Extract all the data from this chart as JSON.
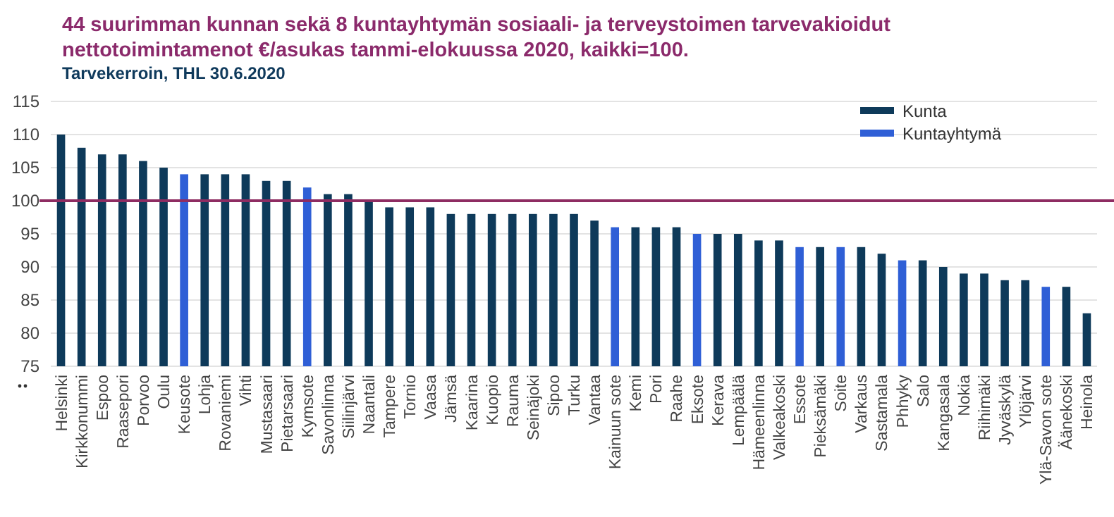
{
  "chart_data": {
    "type": "bar",
    "title": "44 suurimman kunnan sekä 8 kuntayhtymän sosiaali- ja terveystoimen tarvevakioidut nettotoimintamenot €/asukas tammi-elokuussa 2020, kaikki=100.",
    "subtitle": "Tarvekerroin, THL 30.6.2020",
    "categories": [
      "Helsinki",
      "Kirkkonummi",
      "Espoo",
      "Raasepori",
      "Porvoo",
      "Oulu",
      "Keusote",
      "Lohja",
      "Rovaniemi",
      "Vihti",
      "Mustasaari",
      "Pietarsaari",
      "Kymsote",
      "Savonlinna",
      "Siilinjärvi",
      "Naantali",
      "Tampere",
      "Tornio",
      "Vaasa",
      "Jämsä",
      "Kaarina",
      "Kuopio",
      "Rauma",
      "Seinäjoki",
      "Sipoo",
      "Turku",
      "Vantaa",
      "Kainuun sote",
      "Kemi",
      "Pori",
      "Raahe",
      "Eksote",
      "Kerava",
      "Lempäälä",
      "Hämeenlinna",
      "Valkeakoski",
      "Essote",
      "Pieksämäki",
      "Soite",
      "Varkaus",
      "Sastamala",
      "Phhyky",
      "Salo",
      "Kangasala",
      "Nokia",
      "Riihimäki",
      "Jyväskylä",
      "Ylöjärvi",
      "Ylä-Savon sote",
      "Äänekoski",
      "Heinola"
    ],
    "series": [
      {
        "name": "Kunta",
        "color": "#0e3a5a",
        "values": [
          110,
          108,
          107,
          107,
          106,
          105,
          null,
          104,
          104,
          104,
          103,
          103,
          null,
          101,
          101,
          100,
          99,
          99,
          99,
          98,
          98,
          98,
          98,
          98,
          98,
          98,
          97,
          null,
          96,
          96,
          96,
          null,
          95,
          95,
          94,
          94,
          null,
          93,
          null,
          93,
          92,
          null,
          91,
          90,
          89,
          89,
          88,
          88,
          null,
          87,
          83
        ]
      },
      {
        "name": "Kuntayhtymä",
        "color": "#2f5fd6",
        "values": [
          null,
          null,
          null,
          null,
          null,
          null,
          104,
          null,
          null,
          null,
          null,
          null,
          102,
          null,
          null,
          null,
          null,
          null,
          null,
          null,
          null,
          null,
          null,
          null,
          null,
          null,
          null,
          96,
          null,
          null,
          null,
          95,
          null,
          null,
          null,
          null,
          93,
          null,
          93,
          null,
          null,
          91,
          null,
          null,
          null,
          null,
          null,
          null,
          87,
          null,
          null
        ]
      }
    ],
    "stacked": true,
    "ylim": [
      75,
      115
    ],
    "yticks": [
      75,
      80,
      85,
      90,
      95,
      100,
      105,
      110,
      115
    ],
    "grid": "y",
    "legend": "top right",
    "ref_lines": [
      {
        "axis": "y",
        "value": 100,
        "color": "#8e2c62"
      }
    ]
  }
}
